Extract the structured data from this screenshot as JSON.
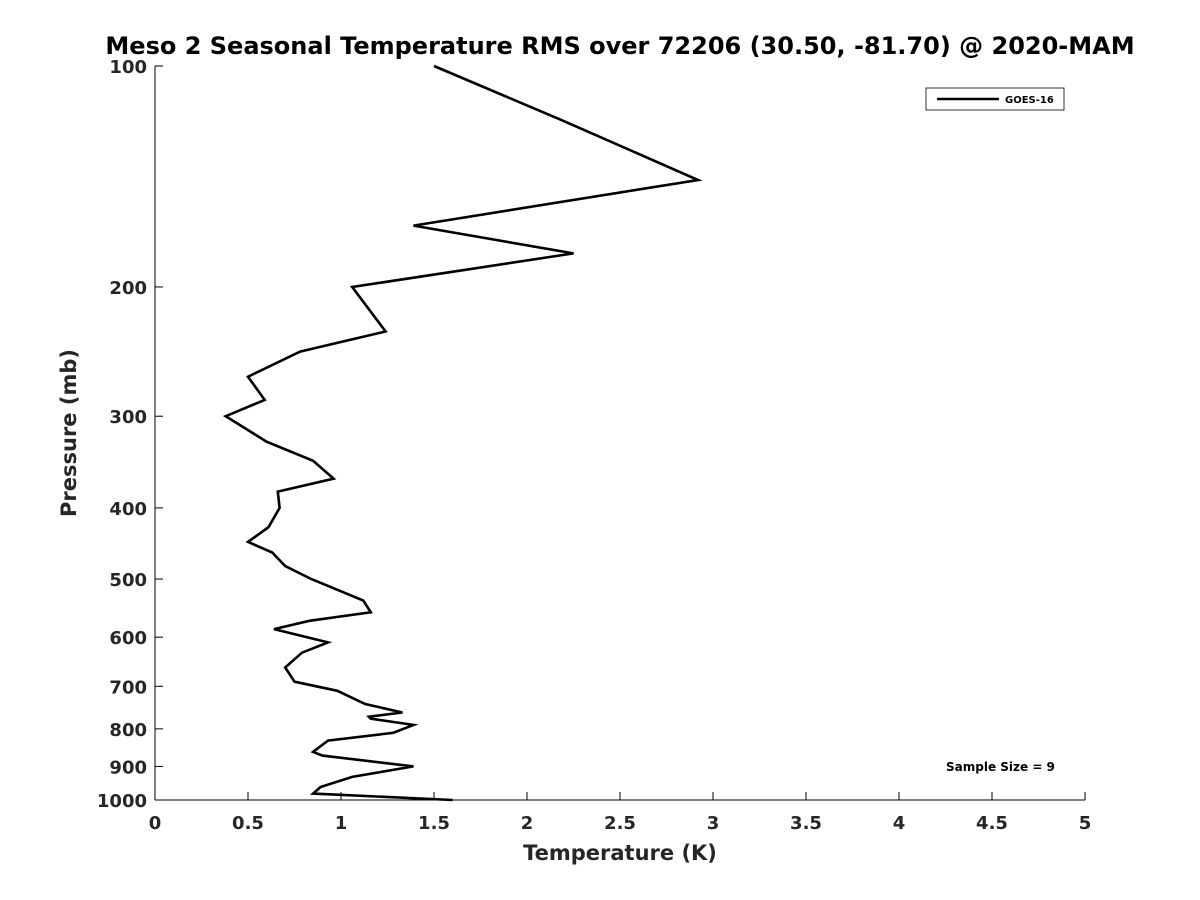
{
  "chart_data": {
    "type": "line",
    "title": "Meso 2 Seasonal Temperature RMS over 72206 (30.50, -81.70) @ 2020-MAM",
    "xlabel": "Temperature (K)",
    "ylabel": "Pressure (mb)",
    "xlim": [
      0,
      5
    ],
    "ylim": [
      100,
      1000
    ],
    "y_scale": "log",
    "y_reversed": true,
    "grid": false,
    "legend_position": "top-right",
    "xticks": [
      "0",
      "0.5",
      "1",
      "1.5",
      "2",
      "2.5",
      "3",
      "3.5",
      "4",
      "4.5",
      "5"
    ],
    "yticks": [
      "100",
      "200",
      "300",
      "400",
      "500",
      "600",
      "700",
      "800",
      "900",
      "1000"
    ],
    "annotation": "Sample Size = 9",
    "series": [
      {
        "name": "GOES-16",
        "color": "#000000",
        "x": [
          1.5,
          2.17,
          2.92,
          1.39,
          2.25,
          1.06,
          1.24,
          0.78,
          0.5,
          0.59,
          0.38,
          0.6,
          0.85,
          0.96,
          0.66,
          0.67,
          0.61,
          0.5,
          0.63,
          0.7,
          0.84,
          1.12,
          1.16,
          0.83,
          0.64,
          0.93,
          0.79,
          0.7,
          0.75,
          0.98,
          1.13,
          1.33,
          1.15,
          1.16,
          1.39,
          1.28,
          0.93,
          0.85,
          0.9,
          1.39,
          1.06,
          0.89,
          0.85,
          1.6
        ],
        "y": [
          100,
          118,
          143,
          165,
          180,
          200,
          230,
          245,
          265,
          285,
          300,
          325,
          345,
          365,
          380,
          400,
          425,
          445,
          460,
          480,
          500,
          535,
          555,
          570,
          585,
          610,
          630,
          660,
          690,
          710,
          740,
          760,
          770,
          775,
          790,
          810,
          830,
          860,
          870,
          900,
          930,
          960,
          980,
          1000
        ]
      }
    ]
  }
}
